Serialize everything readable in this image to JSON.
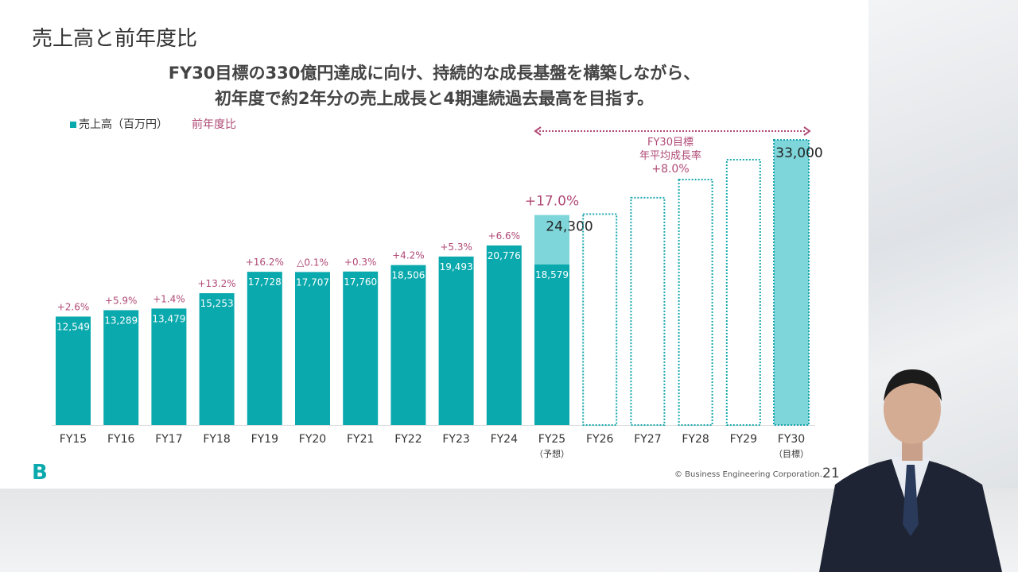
{
  "slide": {
    "title": "売上高と前年度比",
    "subtitle_line1": "FY30目標の330億円達成に向け、持続的な成長基盤を構築しながら、",
    "subtitle_line2": "初年度で約2年分の売上成長と4期連続過去最高を目指す。",
    "copyright": "© Business Engineering Corporation.",
    "page_number": "21",
    "logo_text": "B"
  },
  "chart_data": {
    "type": "bar",
    "legend": {
      "series": "売上高（百万円）",
      "yoy": "前年度比"
    },
    "categories": [
      "FY15",
      "FY16",
      "FY17",
      "FY18",
      "FY19",
      "FY20",
      "FY21",
      "FY22",
      "FY23",
      "FY24",
      "FY25",
      "FY26",
      "FY27",
      "FY28",
      "FY29",
      "FY30"
    ],
    "category_notes": [
      "",
      "",
      "",
      "",
      "",
      "",
      "",
      "",
      "",
      "",
      "（予想）",
      "",
      "",
      "",
      "",
      "（目標）"
    ],
    "values": [
      12549,
      13289,
      13479,
      15253,
      17728,
      17707,
      17760,
      18506,
      19493,
      20776,
      18579,
      null,
      null,
      null,
      null,
      null
    ],
    "value_labels": [
      "12,549",
      "13,289",
      "13,479",
      "15,253",
      "17,728",
      "17,707",
      "17,760",
      "18,506",
      "19,493",
      "20,776",
      "18,579",
      "",
      "",
      "",
      "",
      ""
    ],
    "forecast_totals": [
      null,
      null,
      null,
      null,
      null,
      null,
      null,
      null,
      null,
      null,
      24300,
      24400,
      26300,
      28400,
      30700,
      33000
    ],
    "forecast_labels": [
      "",
      "",
      "",
      "",
      "",
      "",
      "",
      "",
      "",
      "",
      "24,300",
      "",
      "",
      "",
      "",
      "33,000"
    ],
    "yoy_labels": [
      "+2.6%",
      "+5.9%",
      "+1.4%",
      "+13.2%",
      "+16.2%",
      "△0.1%",
      "+0.3%",
      "+4.2%",
      "+5.3%",
      "+6.6%",
      "+17.0%",
      "",
      "",
      "",
      "",
      ""
    ],
    "annotation": {
      "line1": "FY30目標",
      "line2": "年平均成長率",
      "line3": "+8.0%"
    },
    "ylim": [
      0,
      33000
    ],
    "grid": false,
    "colors": {
      "actual": "#0aa9ad",
      "forecast": "#7fd6da",
      "yoy": "#b04a76",
      "outline": "#1aa8ae"
    }
  }
}
